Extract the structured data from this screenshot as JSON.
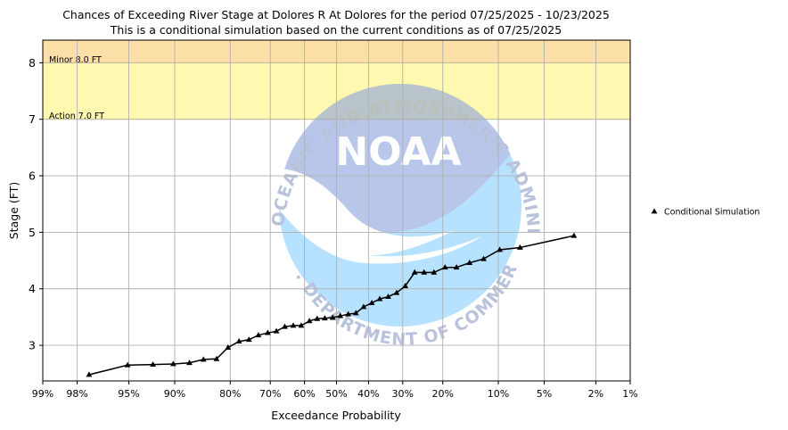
{
  "chart_data": {
    "type": "line",
    "title": "Chances of Exceeding River Stage at Dolores R At Dolores for the period 07/25/2025 - 10/23/2025",
    "subtitle": "This is a conditional simulation based on the current conditions as of 07/25/2025",
    "xlabel": "Exceedance Probability",
    "ylabel": "Stage (FT)",
    "x_scale": "normal-probability (reversed)",
    "x_ticks": [
      0.99,
      0.98,
      0.95,
      0.9,
      0.8,
      0.7,
      0.6,
      0.5,
      0.4,
      0.3,
      0.2,
      0.1,
      0.05,
      0.02,
      0.01
    ],
    "x_tick_labels": [
      "99%",
      "98%",
      "95%",
      "90%",
      "80%",
      "70%",
      "60%",
      "50%",
      "40%",
      "30%",
      "20%",
      "10%",
      "5%",
      "2%",
      "1%"
    ],
    "ylim": [
      2.37,
      8.4
    ],
    "y_ticks": [
      3,
      4,
      5,
      6,
      7,
      8
    ],
    "y_tick_labels": [
      "3",
      "4",
      "5",
      "6",
      "7",
      "8"
    ],
    "grid": true,
    "legend_position": "right",
    "thresholds": [
      {
        "label": "Action 7.0 FT",
        "from": 7.0,
        "to": 8.0,
        "color": "#fff8b0"
      },
      {
        "label": "Minor 8.0 FT",
        "from": 8.0,
        "to": 8.4,
        "color": "#fde0a8"
      }
    ],
    "series": [
      {
        "name": "Conditional Simulation",
        "color": "#000000",
        "marker": "triangle",
        "points": [
          [
            0.975,
            2.48
          ],
          [
            0.951,
            2.65
          ],
          [
            0.927,
            2.66
          ],
          [
            0.902,
            2.67
          ],
          [
            0.878,
            2.69
          ],
          [
            0.854,
            2.75
          ],
          [
            0.829,
            2.76
          ],
          [
            0.805,
            2.96
          ],
          [
            0.78,
            3.07
          ],
          [
            0.756,
            3.1
          ],
          [
            0.732,
            3.18
          ],
          [
            0.707,
            3.22
          ],
          [
            0.683,
            3.25
          ],
          [
            0.659,
            3.33
          ],
          [
            0.634,
            3.35
          ],
          [
            0.61,
            3.35
          ],
          [
            0.585,
            3.43
          ],
          [
            0.561,
            3.47
          ],
          [
            0.537,
            3.48
          ],
          [
            0.512,
            3.49
          ],
          [
            0.488,
            3.52
          ],
          [
            0.463,
            3.55
          ],
          [
            0.439,
            3.57
          ],
          [
            0.415,
            3.68
          ],
          [
            0.39,
            3.75
          ],
          [
            0.366,
            3.82
          ],
          [
            0.341,
            3.86
          ],
          [
            0.317,
            3.93
          ],
          [
            0.293,
            4.05
          ],
          [
            0.268,
            4.29
          ],
          [
            0.244,
            4.29
          ],
          [
            0.22,
            4.29
          ],
          [
            0.195,
            4.38
          ],
          [
            0.171,
            4.38
          ],
          [
            0.146,
            4.46
          ],
          [
            0.122,
            4.53
          ],
          [
            0.098,
            4.69
          ],
          [
            0.073,
            4.73
          ],
          [
            0.03,
            4.94
          ]
        ]
      }
    ]
  },
  "watermark": {
    "arc_top": "NATIONAL OCEANIC AND ATMOSPHERIC ADMINISTRATION",
    "arc_bottom": "U.S. DEPARTMENT OF COMMERCE",
    "center": "NOAA"
  }
}
